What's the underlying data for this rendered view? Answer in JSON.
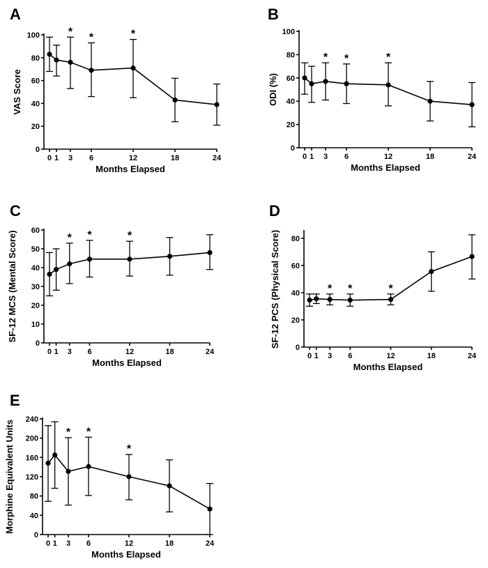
{
  "chart_data": [
    {
      "panel": "A",
      "type": "line",
      "xlabel": "Months Elapsed",
      "ylabel": "VAS Score",
      "x": [
        0,
        1,
        3,
        6,
        12,
        18,
        24
      ],
      "xticks": [
        "0",
        "1",
        "3",
        "6",
        "12",
        "18",
        "24"
      ],
      "xlim": [
        0,
        24
      ],
      "ylim": [
        0,
        100
      ],
      "yticks": [
        "0",
        "20",
        "40",
        "60",
        "80",
        "100"
      ],
      "yticksv": [
        0,
        20,
        40,
        60,
        80,
        100
      ],
      "values": [
        83,
        78,
        76,
        69,
        71,
        43,
        39
      ],
      "err_upper": [
        98,
        91,
        98,
        93,
        96,
        62,
        57
      ],
      "err_lower": [
        68,
        64,
        53,
        46,
        45,
        24,
        21
      ],
      "significant": [
        false,
        false,
        true,
        true,
        true,
        false,
        false
      ],
      "star": "*"
    },
    {
      "panel": "B",
      "type": "line",
      "xlabel": "Months Elapsed",
      "ylabel": "ODI (%)",
      "x": [
        0,
        1,
        3,
        6,
        12,
        18,
        24
      ],
      "xticks": [
        "0",
        "1",
        "3",
        "6",
        "12",
        "18",
        "24"
      ],
      "xlim": [
        0,
        24
      ],
      "ylim": [
        0,
        100
      ],
      "yticks": [
        "0",
        "20",
        "40",
        "60",
        "80",
        "100"
      ],
      "yticksv": [
        0,
        20,
        40,
        60,
        80,
        100
      ],
      "values": [
        60,
        55,
        57,
        55,
        54,
        40,
        37
      ],
      "err_upper": [
        73,
        70,
        73,
        72,
        73,
        57,
        56
      ],
      "err_lower": [
        46,
        39,
        41,
        38,
        36,
        23,
        18
      ],
      "significant": [
        false,
        false,
        true,
        true,
        true,
        false,
        false
      ],
      "star": "*"
    },
    {
      "panel": "C",
      "type": "line",
      "xlabel": "Months Elapsed",
      "ylabel": "SF-12 MCS (Mental Score)",
      "x": [
        0,
        1,
        3,
        6,
        12,
        18,
        24
      ],
      "xticks": [
        "0",
        "1",
        "3",
        "6",
        "12",
        "18",
        "24"
      ],
      "xlim": [
        0,
        24
      ],
      "ylim": [
        0,
        60
      ],
      "yticks": [
        "0",
        "10",
        "20",
        "30",
        "40",
        "50",
        "60"
      ],
      "yticksv": [
        0,
        10,
        20,
        30,
        40,
        50,
        60
      ],
      "values": [
        36.5,
        39,
        42,
        44.5,
        44.5,
        46,
        48
      ],
      "err_upper": [
        48,
        50,
        53,
        54.5,
        54,
        56,
        57.5
      ],
      "err_lower": [
        25,
        28,
        31.5,
        35,
        35.5,
        36,
        39
      ],
      "significant": [
        false,
        false,
        true,
        true,
        true,
        false,
        false
      ],
      "star": "*"
    },
    {
      "panel": "D",
      "type": "line",
      "xlabel": "Months Elapsed",
      "ylabel": "SF-12 PCS (Physical Score)",
      "x": [
        0,
        1,
        3,
        6,
        12,
        18,
        24
      ],
      "xticks": [
        "0",
        "1",
        "3",
        "6",
        "12",
        "18",
        "24"
      ],
      "xlim": [
        0,
        24
      ],
      "ylim": [
        0,
        85
      ],
      "yticks": [
        "0",
        "20",
        "40",
        "60",
        "80"
      ],
      "yticksv": [
        0,
        20,
        40,
        60,
        80
      ],
      "values": [
        34.5,
        35.5,
        35,
        34.5,
        35,
        55.5,
        66.5
      ],
      "err_upper": [
        39,
        39,
        39,
        39,
        39,
        70,
        82.5
      ],
      "err_lower": [
        30,
        32,
        31,
        30,
        31,
        41,
        50
      ],
      "significant": [
        false,
        false,
        true,
        true,
        true,
        false,
        false
      ],
      "star": "*"
    },
    {
      "panel": "E",
      "type": "line",
      "xlabel": "Months Elapsed",
      "ylabel": "Morphine Equivalent Units",
      "x": [
        0,
        1,
        3,
        6,
        12,
        18,
        24
      ],
      "xticks": [
        "0",
        "1",
        "3",
        "6",
        "12",
        "18",
        "24"
      ],
      "xlim": [
        0,
        24
      ],
      "ylim": [
        0,
        240
      ],
      "yticks": [
        "0",
        "40",
        "80",
        "120",
        "160",
        "200",
        "240"
      ],
      "yticksv": [
        0,
        40,
        80,
        120,
        160,
        200,
        240
      ],
      "values": [
        148,
        165,
        131,
        141,
        120,
        101,
        53
      ],
      "err_upper": [
        226,
        234,
        201,
        202,
        166,
        155,
        106
      ],
      "err_lower": [
        69,
        96,
        61,
        81,
        72,
        47,
        0
      ],
      "significant": [
        false,
        false,
        true,
        true,
        true,
        false,
        false
      ],
      "star": "*"
    }
  ]
}
